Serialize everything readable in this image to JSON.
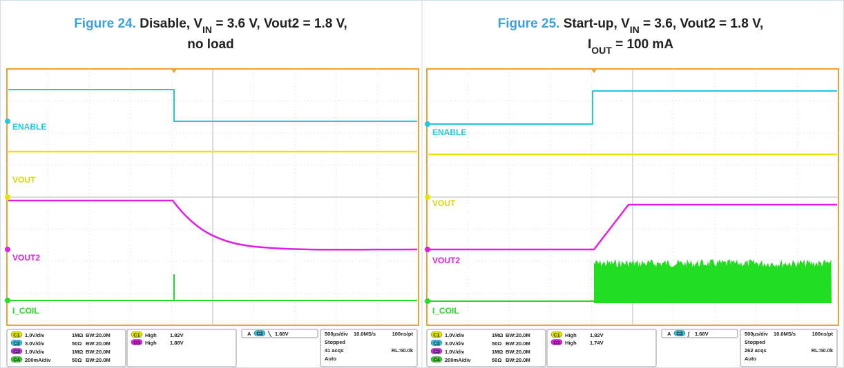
{
  "figures": [
    {
      "number": "Figure 24.",
      "lines": [
        [
          {
            "text": "Disable, V"
          },
          {
            "sub": "IN"
          },
          {
            "text": " = 3.6 V, Vout2 = 1.8 V,"
          }
        ],
        [
          {
            "text": "no load"
          }
        ]
      ],
      "trace_labels": [
        "ENABLE",
        "VOUT",
        "VOUT2",
        "I_COIL"
      ],
      "channels": [
        {
          "name": "C1",
          "color": "#e6e600",
          "scale": "1.0V/div",
          "impedance": "1MΩ",
          "bandwidth": "BW:20.0M"
        },
        {
          "name": "C2",
          "color": "#22c8e0",
          "scale": "3.0V/div",
          "impedance": "50Ω",
          "bandwidth": "BW:20.0M"
        },
        {
          "name": "C3",
          "color": "#e020e0",
          "scale": "1.0V/div",
          "impedance": "1MΩ",
          "bandwidth": "BW:20.0M"
        },
        {
          "name": "C4",
          "color": "#22dd22",
          "scale": "200mA/div",
          "impedance": "50Ω",
          "bandwidth": "BW:20.0M"
        }
      ],
      "measurements": [
        {
          "channel": "C1",
          "label": "High",
          "value": "1.82V"
        },
        {
          "channel": "C3",
          "label": "High",
          "value": "1.88V"
        }
      ],
      "trigger": {
        "source": "A",
        "channel": "C2",
        "slope": "╲",
        "level": "1.68V"
      },
      "timebase": {
        "scale": "500µs/div",
        "rate": "10.0MS/s",
        "resolution": "100ns/pt",
        "state": "Stopped",
        "acqs": "41 acqs",
        "record": "RL:50.0k",
        "mode": "Auto"
      }
    },
    {
      "number": "Figure 25.",
      "lines": [
        [
          {
            "text": "Start-up, V"
          },
          {
            "sub": "IN"
          },
          {
            "text": " = 3.6, Vout2 = 1.8 V,"
          }
        ],
        [
          {
            "text": "I"
          },
          {
            "sub": "OUT"
          },
          {
            "text": " = 100 mA"
          }
        ]
      ],
      "trace_labels": [
        "ENABLE",
        "VOUT",
        "VOUT2",
        "I_COIL"
      ],
      "channels": [
        {
          "name": "C1",
          "color": "#e6e600",
          "scale": "1.0V/div",
          "impedance": "1MΩ",
          "bandwidth": "BW:20.0M"
        },
        {
          "name": "C2",
          "color": "#22c8e0",
          "scale": "3.0V/div",
          "impedance": "50Ω",
          "bandwidth": "BW:20.0M"
        },
        {
          "name": "C3",
          "color": "#e020e0",
          "scale": "1.0V/div",
          "impedance": "1MΩ",
          "bandwidth": "BW:20.0M"
        },
        {
          "name": "C4",
          "color": "#22dd22",
          "scale": "200mA/div",
          "impedance": "50Ω",
          "bandwidth": "BW:20.0M"
        }
      ],
      "measurements": [
        {
          "channel": "C1",
          "label": "High",
          "value": "1.82V"
        },
        {
          "channel": "C3",
          "label": "High",
          "value": "1.74V"
        }
      ],
      "trigger": {
        "source": "A",
        "channel": "C2",
        "slope": "∫",
        "level": "1.68V"
      },
      "timebase": {
        "scale": "500µs/div",
        "rate": "10.0MS/s",
        "resolution": "100ns/pt",
        "state": "Stopped",
        "acqs": "262 acqs",
        "record": "RL:50.0k",
        "mode": "Auto"
      }
    }
  ]
}
